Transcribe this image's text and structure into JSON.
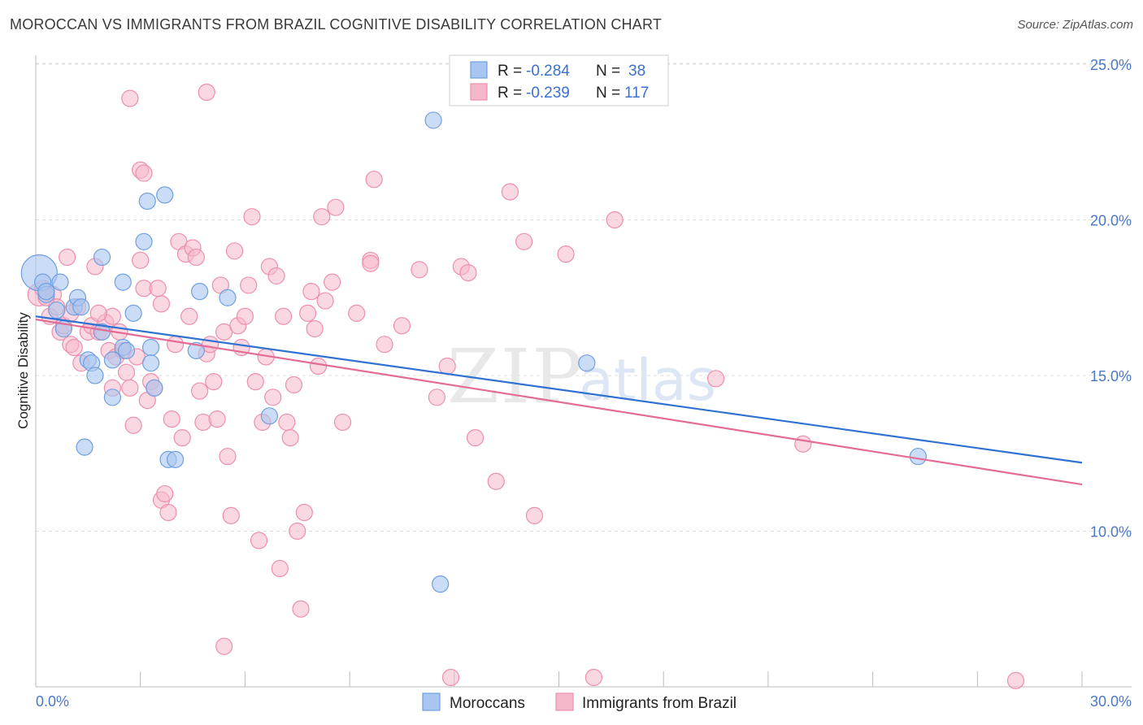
{
  "header": {
    "title": "MOROCCAN VS IMMIGRANTS FROM BRAZIL COGNITIVE DISABILITY CORRELATION CHART",
    "source": "Source: ZipAtlas.com"
  },
  "legend_top": {
    "rows": [
      {
        "r_label": "R =",
        "r_value": "-0.284",
        "n_label": "N =",
        "n_value": "38"
      },
      {
        "r_label": "R =",
        "r_value": "-0.239",
        "n_label": "N =",
        "n_value": "117"
      }
    ]
  },
  "legend_bottom": {
    "items": [
      "Moroccans",
      "Immigrants from Brazil"
    ]
  },
  "watermark": {
    "zip": "ZIP",
    "atlas": "atlas"
  },
  "colors": {
    "blue_fill": "#a9c6f0",
    "blue_stroke": "#6f9fe0",
    "blue_line": "#2f72d2",
    "pink_fill": "#f5b8cb",
    "pink_stroke": "#ec8fae",
    "pink_line": "#e46b95",
    "grid": "#dddddd",
    "tick_label": "#4a78c8"
  },
  "chart_data": {
    "type": "scatter",
    "title": "MOROCCAN VS IMMIGRANTS FROM BRAZIL COGNITIVE DISABILITY CORRELATION CHART",
    "xlabel": "",
    "ylabel": "Cognitive Disability",
    "xlim": [
      0,
      30
    ],
    "ylim": [
      5,
      26
    ],
    "x_tick_labels": [
      "0.0%",
      "30.0%"
    ],
    "y_ticks": [
      10,
      15,
      20,
      25
    ],
    "y_tick_labels": [
      "10.0%",
      "15.0%",
      "20.0%",
      "25.0%"
    ],
    "grid": true,
    "legend_position": "top-center",
    "series": [
      {
        "name": "Moroccans",
        "color": "#a9c6f0",
        "r": -0.284,
        "n": 38,
        "trend": {
          "x": [
            0,
            30
          ],
          "y": [
            16.9,
            12.2
          ]
        },
        "points": [
          [
            0.1,
            18.3,
            22
          ],
          [
            0.2,
            18.0,
            10
          ],
          [
            0.3,
            17.6,
            10
          ],
          [
            0.6,
            17.1,
            10
          ],
          [
            0.8,
            16.5,
            10
          ],
          [
            0.7,
            18.0,
            10
          ],
          [
            1.1,
            17.2,
            10
          ],
          [
            1.2,
            17.5,
            10
          ],
          [
            1.3,
            17.2,
            10
          ],
          [
            1.9,
            18.8,
            10
          ],
          [
            1.9,
            16.4,
            10
          ],
          [
            1.5,
            15.5,
            10
          ],
          [
            1.6,
            15.4,
            10
          ],
          [
            1.7,
            15.0,
            10
          ],
          [
            2.2,
            15.5,
            10
          ],
          [
            2.5,
            15.9,
            10
          ],
          [
            2.6,
            15.8,
            10
          ],
          [
            2.5,
            18.0,
            10
          ],
          [
            2.8,
            17.0,
            10
          ],
          [
            3.2,
            20.6,
            10
          ],
          [
            3.1,
            19.3,
            10
          ],
          [
            3.3,
            15.9,
            10
          ],
          [
            3.3,
            15.4,
            10
          ],
          [
            3.4,
            14.6,
            10
          ],
          [
            3.7,
            20.8,
            10
          ],
          [
            3.8,
            12.3,
            10
          ],
          [
            4.0,
            12.3,
            10
          ],
          [
            2.2,
            14.3,
            10
          ],
          [
            4.6,
            15.8,
            10
          ],
          [
            4.7,
            17.7,
            10
          ],
          [
            5.5,
            17.5,
            10
          ],
          [
            6.7,
            13.7,
            10
          ],
          [
            11.4,
            23.2,
            10
          ],
          [
            11.6,
            8.3,
            10
          ],
          [
            1.4,
            12.7,
            10
          ],
          [
            15.8,
            15.4,
            10
          ],
          [
            25.3,
            12.4,
            10
          ],
          [
            0.3,
            17.7,
            10
          ]
        ]
      },
      {
        "name": "Immigrants from Brazil",
        "color": "#f5b8cb",
        "r": -0.239,
        "n": 117,
        "trend": {
          "x": [
            0,
            30
          ],
          "y": [
            16.8,
            11.5
          ]
        },
        "points": [
          [
            0.1,
            17.6,
            14
          ],
          [
            0.2,
            17.8,
            10
          ],
          [
            0.4,
            16.9,
            10
          ],
          [
            0.5,
            17.6,
            10
          ],
          [
            0.6,
            17.2,
            10
          ],
          [
            0.7,
            16.4,
            10
          ],
          [
            0.8,
            16.6,
            10
          ],
          [
            0.9,
            18.8,
            10
          ],
          [
            1.0,
            16.0,
            10
          ],
          [
            1.1,
            15.9,
            10
          ],
          [
            1.2,
            17.2,
            10
          ],
          [
            1.3,
            15.4,
            10
          ],
          [
            1.5,
            16.4,
            10
          ],
          [
            1.6,
            16.6,
            10
          ],
          [
            1.7,
            18.5,
            10
          ],
          [
            1.8,
            16.4,
            10
          ],
          [
            1.9,
            16.4,
            10
          ],
          [
            2.0,
            16.7,
            10
          ],
          [
            2.1,
            15.8,
            10
          ],
          [
            2.2,
            14.6,
            10
          ],
          [
            2.2,
            16.9,
            10
          ],
          [
            2.3,
            15.6,
            10
          ],
          [
            2.4,
            16.4,
            10
          ],
          [
            2.5,
            15.8,
            10
          ],
          [
            2.6,
            15.1,
            10
          ],
          [
            2.7,
            14.6,
            10
          ],
          [
            2.8,
            13.4,
            10
          ],
          [
            2.9,
            15.6,
            10
          ],
          [
            3.0,
            18.7,
            10
          ],
          [
            3.1,
            17.8,
            10
          ],
          [
            3.2,
            14.2,
            10
          ],
          [
            3.3,
            14.8,
            10
          ],
          [
            3.4,
            14.6,
            10
          ],
          [
            3.5,
            17.8,
            10
          ],
          [
            3.6,
            11.0,
            10
          ],
          [
            3.7,
            11.2,
            10
          ],
          [
            3.8,
            10.6,
            10
          ],
          [
            3.9,
            13.6,
            10
          ],
          [
            4.0,
            16.0,
            10
          ],
          [
            4.1,
            19.3,
            10
          ],
          [
            4.2,
            13.0,
            10
          ],
          [
            4.3,
            18.9,
            10
          ],
          [
            4.4,
            16.9,
            10
          ],
          [
            4.5,
            19.1,
            10
          ],
          [
            4.6,
            18.8,
            10
          ],
          [
            4.7,
            14.5,
            10
          ],
          [
            4.8,
            13.5,
            10
          ],
          [
            4.9,
            15.7,
            10
          ],
          [
            5.0,
            16.0,
            10
          ],
          [
            5.1,
            14.8,
            10
          ],
          [
            5.2,
            13.6,
            10
          ],
          [
            5.3,
            17.9,
            10
          ],
          [
            5.4,
            16.4,
            10
          ],
          [
            5.5,
            12.4,
            10
          ],
          [
            5.6,
            10.5,
            10
          ],
          [
            5.7,
            19.0,
            10
          ],
          [
            5.8,
            16.6,
            10
          ],
          [
            5.9,
            15.9,
            10
          ],
          [
            6.0,
            16.9,
            10
          ],
          [
            6.1,
            17.9,
            10
          ],
          [
            6.2,
            20.1,
            10
          ],
          [
            6.3,
            14.8,
            10
          ],
          [
            6.4,
            9.7,
            10
          ],
          [
            6.5,
            13.5,
            10
          ],
          [
            6.6,
            15.6,
            10
          ],
          [
            6.7,
            18.5,
            10
          ],
          [
            6.8,
            14.3,
            10
          ],
          [
            6.9,
            18.2,
            10
          ],
          [
            7.0,
            8.8,
            10
          ],
          [
            7.1,
            16.9,
            10
          ],
          [
            7.2,
            13.5,
            10
          ],
          [
            7.3,
            13.0,
            10
          ],
          [
            7.4,
            14.7,
            10
          ],
          [
            7.5,
            10.0,
            10
          ],
          [
            7.6,
            7.5,
            10
          ],
          [
            7.7,
            10.6,
            10
          ],
          [
            7.8,
            17.0,
            10
          ],
          [
            7.9,
            17.7,
            10
          ],
          [
            8.0,
            16.5,
            10
          ],
          [
            8.1,
            15.3,
            10
          ],
          [
            8.2,
            20.1,
            10
          ],
          [
            8.5,
            18.0,
            10
          ],
          [
            8.6,
            20.4,
            10
          ],
          [
            8.8,
            13.5,
            10
          ],
          [
            9.2,
            17.0,
            10
          ],
          [
            9.6,
            18.7,
            10
          ],
          [
            9.7,
            21.3,
            10
          ],
          [
            10.0,
            16.0,
            10
          ],
          [
            10.5,
            16.6,
            10
          ],
          [
            11.0,
            18.4,
            10
          ],
          [
            11.5,
            14.3,
            10
          ],
          [
            11.8,
            15.3,
            10
          ],
          [
            12.2,
            18.5,
            10
          ],
          [
            12.4,
            18.3,
            10
          ],
          [
            12.6,
            13.0,
            10
          ],
          [
            13.2,
            11.6,
            10
          ],
          [
            13.6,
            20.9,
            10
          ],
          [
            14.0,
            19.3,
            10
          ],
          [
            14.3,
            10.5,
            10
          ],
          [
            15.2,
            18.9,
            10
          ],
          [
            16.6,
            20.0,
            10
          ],
          [
            19.5,
            14.9,
            10
          ],
          [
            22.0,
            12.8,
            10
          ],
          [
            4.9,
            24.1,
            10
          ],
          [
            2.7,
            23.9,
            10
          ],
          [
            3.0,
            21.6,
            10
          ],
          [
            3.1,
            21.5,
            10
          ],
          [
            5.4,
            6.3,
            10
          ],
          [
            11.9,
            5.3,
            10
          ],
          [
            16.0,
            5.3,
            10
          ],
          [
            28.1,
            5.2,
            10
          ],
          [
            0.3,
            17.5,
            10
          ],
          [
            1.0,
            17.0,
            10
          ],
          [
            1.8,
            17.0,
            10
          ],
          [
            3.6,
            17.3,
            10
          ],
          [
            8.3,
            17.4,
            10
          ],
          [
            9.6,
            18.6,
            10
          ]
        ]
      }
    ]
  }
}
